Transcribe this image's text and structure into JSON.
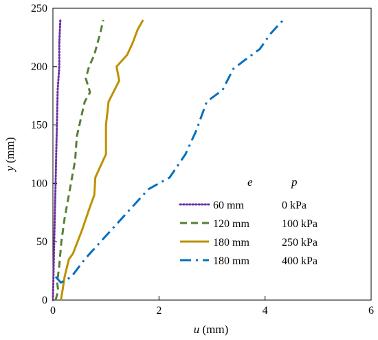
{
  "chart_data": {
    "type": "line",
    "title": "",
    "xlabel": {
      "var": "u",
      "unit": " (mm)"
    },
    "ylabel": {
      "var": "y",
      "unit": " (mm)"
    },
    "xlim": [
      0,
      6
    ],
    "ylim": [
      0,
      250
    ],
    "xticks": [
      0,
      2,
      4,
      6
    ],
    "yticks": [
      0,
      50,
      100,
      150,
      200,
      250
    ],
    "grid": false,
    "legend": {
      "placement": "bottom-right",
      "header": [
        "e",
        "p"
      ]
    },
    "series": [
      {
        "e": "60 mm",
        "p": "0 kPa",
        "color": "#7030a0",
        "style": "dotted",
        "points": [
          [
            0.0,
            0
          ],
          [
            0.01,
            20
          ],
          [
            0.02,
            40
          ],
          [
            0.03,
            60
          ],
          [
            0.04,
            80
          ],
          [
            0.05,
            100
          ],
          [
            0.06,
            120
          ],
          [
            0.07,
            140
          ],
          [
            0.08,
            160
          ],
          [
            0.09,
            180
          ],
          [
            0.12,
            200
          ],
          [
            0.12,
            220
          ],
          [
            0.13,
            230
          ],
          [
            0.14,
            240
          ]
        ]
      },
      {
        "e": "120 mm",
        "p": "100 kPa",
        "color": "#548235",
        "style": "dashed",
        "points": [
          [
            0.05,
            0
          ],
          [
            0.1,
            8
          ],
          [
            0.08,
            15
          ],
          [
            0.12,
            30
          ],
          [
            0.16,
            50
          ],
          [
            0.22,
            70
          ],
          [
            0.3,
            90
          ],
          [
            0.38,
            110
          ],
          [
            0.42,
            120
          ],
          [
            0.45,
            140
          ],
          [
            0.55,
            160
          ],
          [
            0.6,
            170
          ],
          [
            0.7,
            178
          ],
          [
            0.62,
            190
          ],
          [
            0.68,
            200
          ],
          [
            0.78,
            210
          ],
          [
            0.9,
            230
          ],
          [
            0.95,
            240
          ]
        ]
      },
      {
        "e": "180 mm",
        "p": "250 kPa",
        "color": "#bf9000",
        "style": "solid",
        "points": [
          [
            0.15,
            0
          ],
          [
            0.18,
            8
          ],
          [
            0.22,
            20
          ],
          [
            0.3,
            35
          ],
          [
            0.38,
            40
          ],
          [
            0.55,
            60
          ],
          [
            0.7,
            80
          ],
          [
            0.78,
            90
          ],
          [
            0.8,
            105
          ],
          [
            0.9,
            115
          ],
          [
            1.0,
            125
          ],
          [
            1.0,
            150
          ],
          [
            1.05,
            170
          ],
          [
            1.25,
            188
          ],
          [
            1.2,
            200
          ],
          [
            1.4,
            210
          ],
          [
            1.5,
            220
          ],
          [
            1.6,
            232
          ],
          [
            1.7,
            240
          ]
        ]
      },
      {
        "e": "180 mm",
        "p": "400 kPa",
        "color": "#0070c0",
        "style": "dashdot",
        "points": [
          [
            0.05,
            20
          ],
          [
            0.15,
            15
          ],
          [
            0.35,
            20
          ],
          [
            0.6,
            35
          ],
          [
            0.9,
            50
          ],
          [
            1.2,
            65
          ],
          [
            1.5,
            80
          ],
          [
            1.8,
            95
          ],
          [
            2.2,
            105
          ],
          [
            2.5,
            125
          ],
          [
            2.7,
            145
          ],
          [
            2.9,
            170
          ],
          [
            3.2,
            180
          ],
          [
            3.4,
            198
          ],
          [
            3.6,
            205
          ],
          [
            3.9,
            215
          ],
          [
            4.1,
            228
          ],
          [
            4.3,
            238
          ],
          [
            4.35,
            240
          ]
        ]
      }
    ]
  }
}
